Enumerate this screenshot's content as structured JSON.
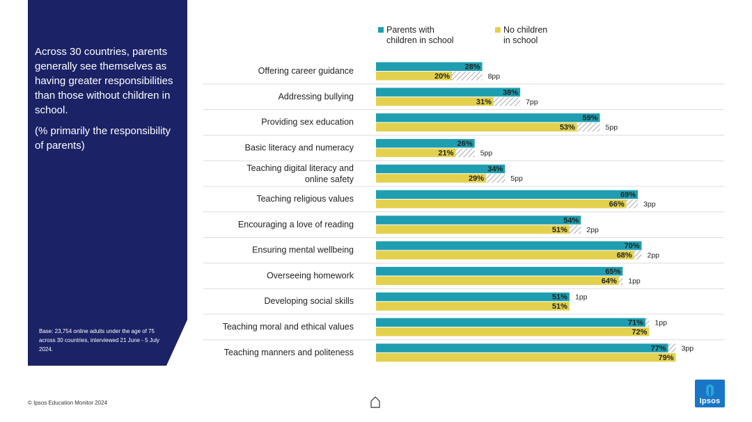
{
  "sidebar": {
    "headline": "Across 30 countries, parents generally see themselves as having greater responsibilities than those without children  in school.",
    "subheadline": "(% primarily the responsibility of parents)",
    "base_note": "Base: 23,754 online adults under the age of 75 across 30 countries, interviewed 21 June - 5 July 2024."
  },
  "footer": {
    "copyright": "© Ipsos Education Monitor 2024"
  },
  "logo": {
    "text": "Ipsos"
  },
  "colors": {
    "parents": "#1e9eb0",
    "no_children": "#e3d14e",
    "sidebar": "#1b2266",
    "logo": "#1976c6"
  },
  "chart_data": {
    "type": "bar",
    "orientation": "horizontal",
    "categories": [
      "Offering career guidance",
      "Addressing bullying",
      "Providing sex education",
      "Basic literacy and numeracy",
      "Teaching digital literacy and online safety",
      "Teaching religious values",
      "Encouraging a love of reading",
      "Ensuring mental wellbeing",
      "Overseeing homework",
      "Developing social skills",
      "Teaching moral and ethical values",
      "Teaching manners and politeness"
    ],
    "series": [
      {
        "name": "Parents with children in school",
        "values": [
          28,
          38,
          59,
          26,
          34,
          69,
          54,
          70,
          65,
          51,
          71,
          77
        ]
      },
      {
        "name": "No children in school",
        "values": [
          20,
          31,
          53,
          21,
          29,
          66,
          51,
          68,
          64,
          51,
          72,
          79
        ]
      }
    ],
    "value_labels": {
      "parents": [
        "28%",
        "38%",
        "59%",
        "26%",
        "34%",
        "69%",
        "54%",
        "70%",
        "65%",
        "51%",
        "71%",
        "77%"
      ],
      "no_children": [
        "20%",
        "31%",
        "53%",
        "21%",
        "29%",
        "66%",
        "51%",
        "68%",
        "64%",
        "51%",
        "72%",
        "79%"
      ]
    },
    "gap_labels": [
      "8pp",
      "7pp",
      "5pp",
      "5pp",
      "5pp",
      "3pp",
      "2pp",
      "2pp",
      "1pp",
      "1pp",
      "1pp",
      "3pp"
    ],
    "legend": [
      {
        "line1": "Parents with",
        "line2": "children in school"
      },
      {
        "line1": "No children",
        "line2": "in school"
      }
    ],
    "xlim": [
      0,
      100
    ],
    "gridlines": false
  }
}
